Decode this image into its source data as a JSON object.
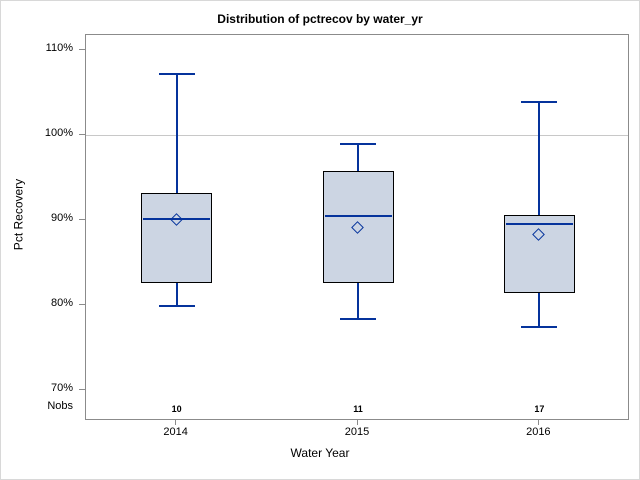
{
  "chart_data": {
    "type": "box",
    "title": "Distribution of pctrecov by water_yr",
    "xlabel": "Water Year",
    "ylabel": "Pct Recovery",
    "nobs_label": "Nobs",
    "categories": [
      "2014",
      "2015",
      "2016"
    ],
    "series": [
      {
        "category": "2014",
        "min": 79.9,
        "q1": 82.6,
        "median": 90.1,
        "mean": 90.0,
        "q3": 93.2,
        "max": 107.2,
        "nobs": "10"
      },
      {
        "category": "2015",
        "min": 78.4,
        "q1": 82.6,
        "median": 90.5,
        "mean": 89.1,
        "q3": 95.8,
        "max": 99.0,
        "nobs": "11"
      },
      {
        "category": "2016",
        "min": 77.5,
        "q1": 81.5,
        "median": 89.6,
        "mean": 88.3,
        "q3": 90.6,
        "max": 103.9,
        "nobs": "17"
      }
    ],
    "yticks": [
      {
        "value": 110,
        "label": "110%"
      },
      {
        "value": 100,
        "label": "100%"
      },
      {
        "value": 90,
        "label": "90%"
      },
      {
        "value": 80,
        "label": "80%"
      },
      {
        "value": 70,
        "label": "70%"
      }
    ],
    "ylim": [
      66.4,
      111.8
    ],
    "reference_line": 100,
    "grid": "off",
    "legend": "none",
    "colors": {
      "box_fill": "#ccd5e3",
      "box_border": "#000000",
      "line": "#05339c",
      "reference_line": "#c8c8c8",
      "frame": "#8b8b8b",
      "figure_border": "#d8d8d8",
      "text": "#000000"
    }
  }
}
